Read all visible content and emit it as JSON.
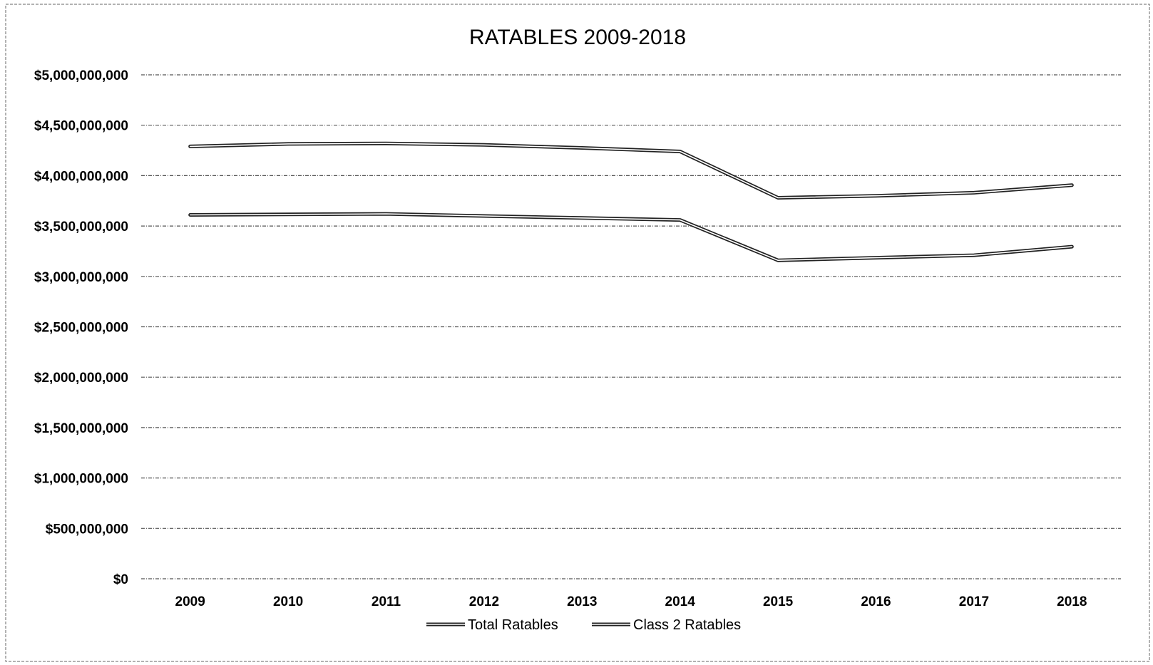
{
  "chart_data": {
    "type": "line",
    "title": "RATABLES 2009-2018",
    "categories": [
      "2009",
      "2010",
      "2011",
      "2012",
      "2013",
      "2014",
      "2015",
      "2016",
      "2017",
      "2018"
    ],
    "y_ticks": [
      {
        "value": 0,
        "label": "$0"
      },
      {
        "value": 500000000,
        "label": "$500,000,000"
      },
      {
        "value": 1000000000,
        "label": "$1,000,000,000"
      },
      {
        "value": 1500000000,
        "label": "$1,500,000,000"
      },
      {
        "value": 2000000000,
        "label": "$2,000,000,000"
      },
      {
        "value": 2500000000,
        "label": "$2,500,000,000"
      },
      {
        "value": 3000000000,
        "label": "$3,000,000,000"
      },
      {
        "value": 3500000000,
        "label": "$3,500,000,000"
      },
      {
        "value": 4000000000,
        "label": "$4,000,000,000"
      },
      {
        "value": 4500000000,
        "label": "$4,500,000,000"
      },
      {
        "value": 5000000000,
        "label": "$5,000,000,000"
      }
    ],
    "ylim": [
      0,
      5000000000
    ],
    "grid": true,
    "legend_position": "bottom",
    "series": [
      {
        "name": "Total Ratables",
        "values": [
          4290000000,
          4315000000,
          4320000000,
          4305000000,
          4275000000,
          4240000000,
          3780000000,
          3800000000,
          3830000000,
          3905000000
        ]
      },
      {
        "name": "Class 2 Ratables",
        "values": [
          3610000000,
          3615000000,
          3620000000,
          3600000000,
          3580000000,
          3560000000,
          3160000000,
          3185000000,
          3210000000,
          3295000000
        ]
      }
    ],
    "series_color": "#222222"
  }
}
